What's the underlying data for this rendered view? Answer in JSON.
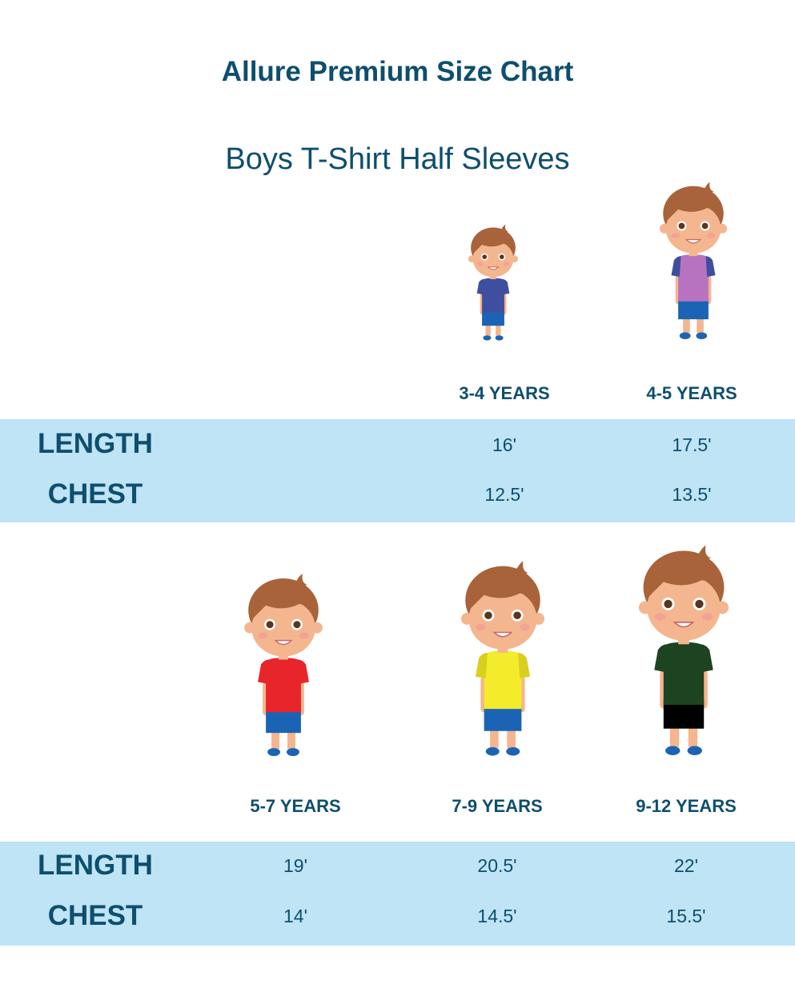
{
  "title": "Allure Premium Size Chart",
  "subtitle": "Boys T-Shirt Half Sleeves",
  "colors": {
    "text": "#0e4e6e",
    "band": "#bee4f5"
  },
  "row_labels": [
    "LENGTH",
    "CHEST"
  ],
  "sizes": [
    {
      "label": "3-4 YEARS",
      "length": "16'",
      "chest": "12.5'",
      "shirt": "#3f4fa0",
      "sleeve": "#3f4fa0",
      "shorts": "#1b64b5"
    },
    {
      "label": "4-5 YEARS",
      "length": "17.5'",
      "chest": "13.5'",
      "shirt": "#b873c0",
      "sleeve": "#3f4fa0",
      "shorts": "#1b64b5"
    },
    {
      "label": "5-7 YEARS",
      "length": "19'",
      "chest": "14'",
      "shirt": "#e8252b",
      "sleeve": "#e8252b",
      "shorts": "#1b64b5"
    },
    {
      "label": "7-9 YEARS",
      "length": "20.5'",
      "chest": "14.5'",
      "shirt": "#f4ec2a",
      "sleeve": "#d8cf1e",
      "shorts": "#1b64b5"
    },
    {
      "label": "9-12 YEARS",
      "length": "22'",
      "chest": "15.5'",
      "shirt": "#1e4320",
      "sleeve": "#1e4320",
      "shorts": "#000000"
    }
  ]
}
